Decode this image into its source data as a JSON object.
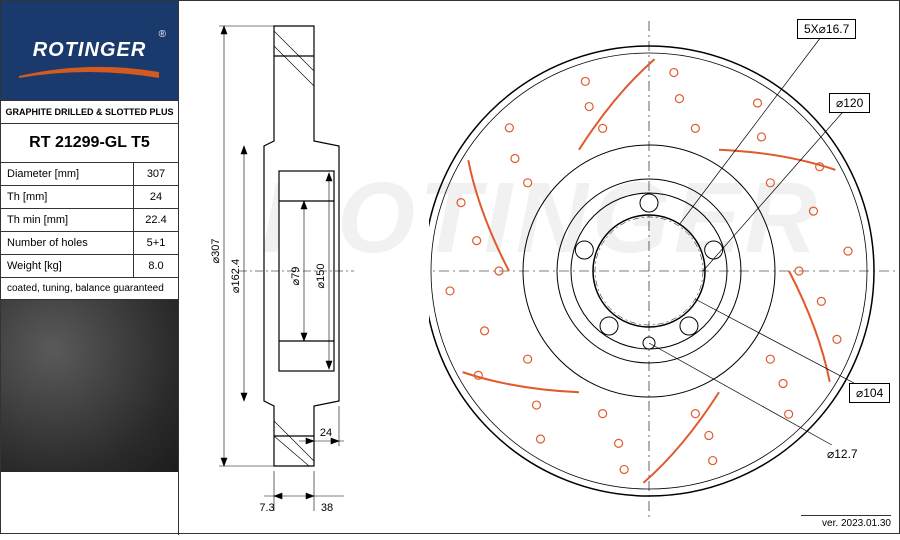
{
  "logo": {
    "brand": "ROTINGER",
    "reg": "®"
  },
  "product": {
    "header": "GRAPHITE DRILLED & SLOTTED PLUS",
    "part_number": "RT 21299-GL T5",
    "note": "coated, tuning, balance guaranteed"
  },
  "specs": [
    {
      "label": "Diameter [mm]",
      "value": "307"
    },
    {
      "label": "Th [mm]",
      "value": "24"
    },
    {
      "label": "Th min [mm]",
      "value": "22.4"
    },
    {
      "label": "Number of holes",
      "value": "5+1"
    },
    {
      "label": "Weight [kg]",
      "value": "8.0"
    }
  ],
  "side_view": {
    "dims": {
      "outer_dia": "⌀307",
      "hub_dia": "⌀162.4",
      "bore_dia": "⌀79",
      "pilot_dia": "⌀150",
      "thickness": "24",
      "offset1": "7.3",
      "offset2": "38"
    },
    "colors": {
      "stroke": "#000000",
      "fill": "#ffffff",
      "dim_line": "#000000"
    }
  },
  "front_view": {
    "callouts": {
      "bolt_pattern": "5X⌀16.7",
      "pcd": "⌀120",
      "hub_pcd": "⌀104",
      "locator": "⌀12.7"
    },
    "colors": {
      "disc_stroke": "#000000",
      "slot_color": "#e05a2b",
      "drill_color": "#e05a2b",
      "center_line": "#000000"
    },
    "geometry": {
      "outer_r": 225,
      "inner_r": 68,
      "hub_r": 90,
      "bolt_circle_r": 54,
      "n_bolts": 5,
      "n_slots": 6,
      "drill_rows": 3
    }
  },
  "watermark": "ROTINGER",
  "version": "ver. 2023.01.30"
}
